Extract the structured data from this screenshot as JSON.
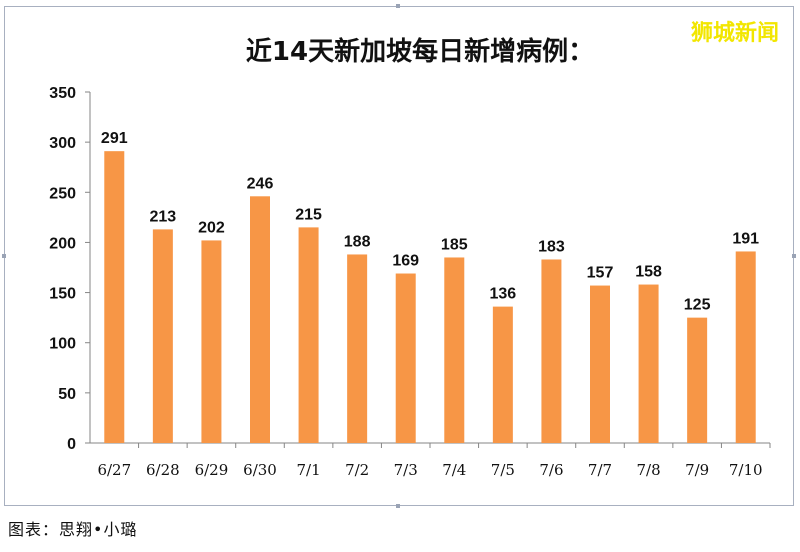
{
  "watermark": "狮城新闻",
  "caption": "图表：思翔•小璐",
  "colors": {
    "bar": "#F79646",
    "axis": "#868686",
    "watermark": "#F2E600"
  },
  "chart_data": {
    "type": "bar",
    "title": "近14天新加坡每日新增病例：",
    "xlabel": "",
    "ylabel": "",
    "ylim": [
      0,
      350
    ],
    "yticks": [
      0,
      50,
      100,
      150,
      200,
      250,
      300,
      350
    ],
    "grid": false,
    "legend": "none",
    "categories": [
      "6/27",
      "6/28",
      "6/29",
      "6/30",
      "7/1",
      "7/2",
      "7/3",
      "7/4",
      "7/5",
      "7/6",
      "7/7",
      "7/8",
      "7/9",
      "7/10"
    ],
    "values": [
      291,
      213,
      202,
      246,
      215,
      188,
      169,
      185,
      136,
      183,
      157,
      158,
      125,
      191
    ]
  }
}
